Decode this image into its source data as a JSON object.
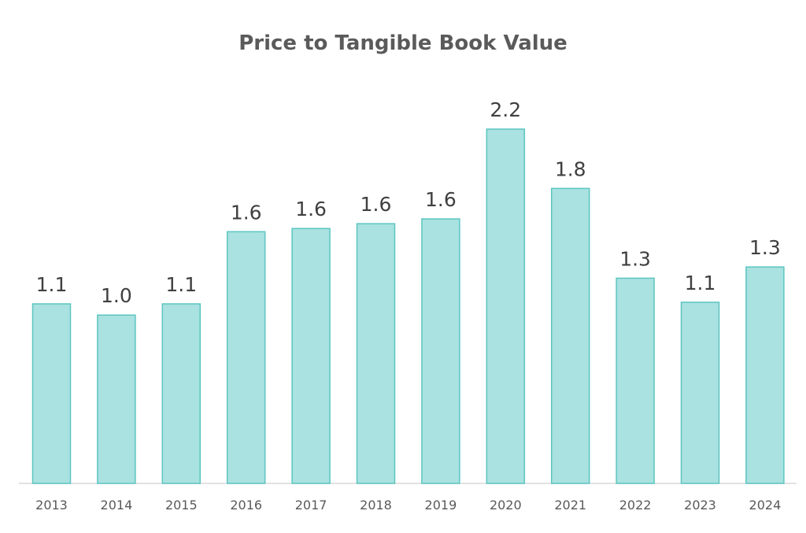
{
  "chart_data": {
    "type": "bar",
    "title": "Price to Tangible Book Value",
    "xlabel": "",
    "ylabel": "",
    "categories": [
      "2013",
      "2014",
      "2015",
      "2016",
      "2017",
      "2018",
      "2019",
      "2020",
      "2021",
      "2022",
      "2023",
      "2024"
    ],
    "values": [
      1.12,
      1.05,
      1.12,
      1.57,
      1.59,
      1.62,
      1.65,
      2.21,
      1.84,
      1.28,
      1.13,
      1.35
    ],
    "data_labels": [
      "1.1",
      "1.0",
      "1.1",
      "1.6",
      "1.6",
      "1.6",
      "1.6",
      "2.2",
      "1.8",
      "1.3",
      "1.1",
      "1.3"
    ],
    "ylim": [
      0,
      2.21
    ],
    "grid": false,
    "legend": "none",
    "colors": {
      "bar_fill": "#a9e2e0",
      "bar_stroke": "#5cc5c1",
      "axis": "#d9d9d9"
    }
  }
}
